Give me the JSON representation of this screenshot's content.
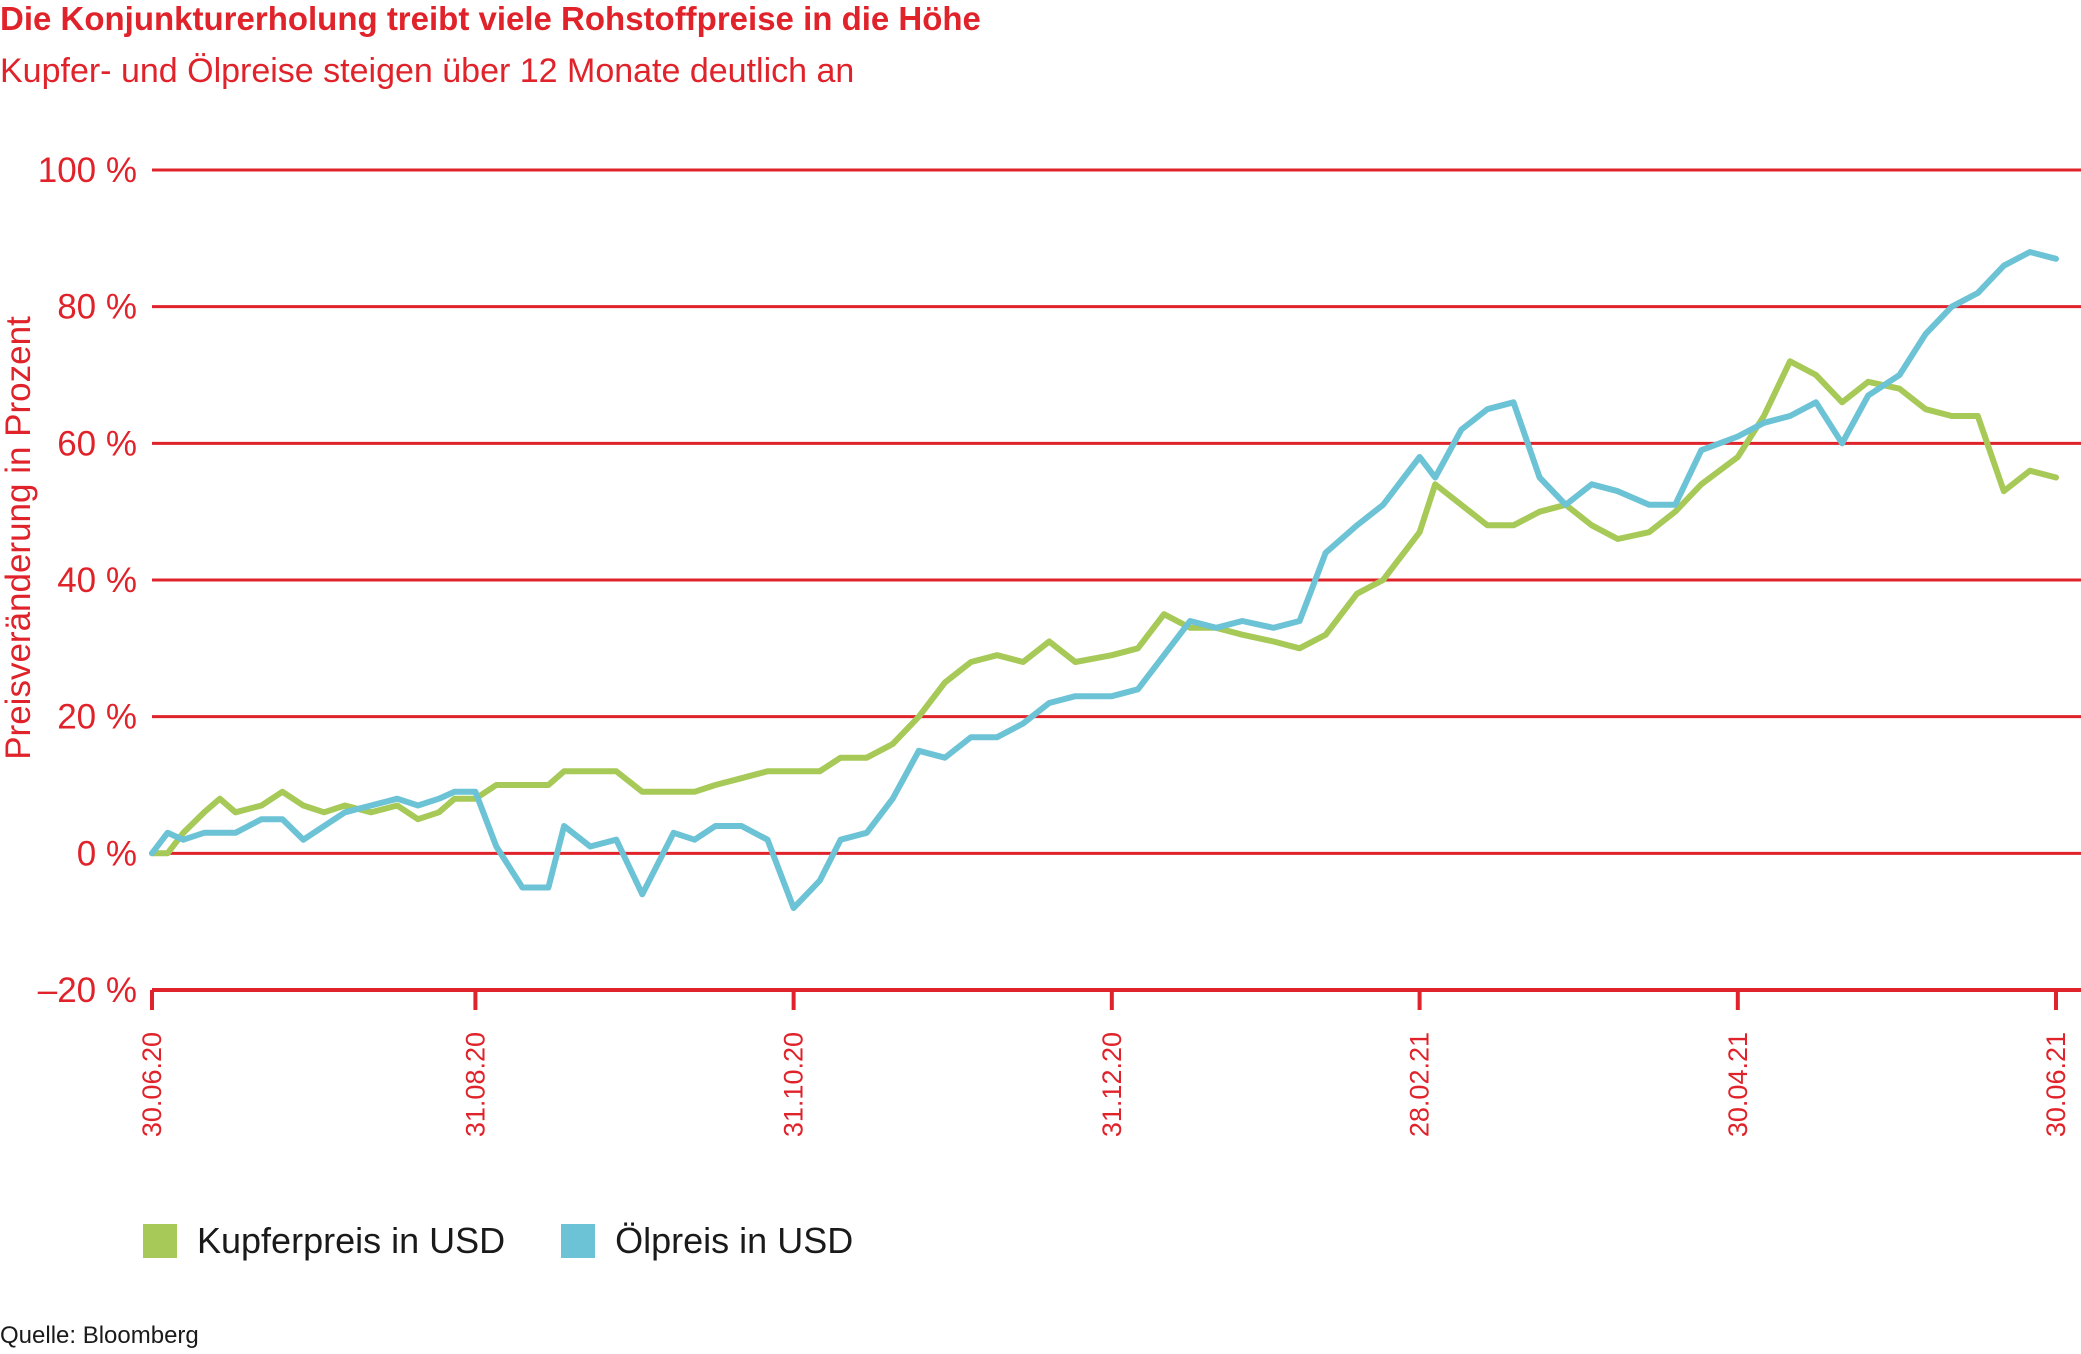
{
  "chart_data": {
    "type": "line",
    "title": "Die Konjunkturerholung treibt viele Rohstoffpreise in die Höhe",
    "subtitle": "Kupfer- und Ölpreise steigen über 12 Monate deutlich an",
    "ylabel": "Preisveränderung in Prozent",
    "xlabel": "",
    "ylim": [
      -20,
      100
    ],
    "y_ticks": [
      -20,
      0,
      20,
      40,
      60,
      80,
      100
    ],
    "y_tick_labels": [
      "–20 %",
      "0 %",
      "20 %",
      "40 %",
      "60 %",
      "80 %",
      "100 %"
    ],
    "x_ticks": [
      "30.06.20",
      "31.08.20",
      "31.10.20",
      "31.12.20",
      "28.02.21",
      "30.04.21",
      "30.06.21"
    ],
    "grid": true,
    "legend_position": "bottom-left",
    "x_range": [
      "30.06.20",
      "30.06.21"
    ],
    "series": [
      {
        "name": "Kupferpreis in USD",
        "color": "#a7c957",
        "points": [
          [
            "30.06.20",
            0
          ],
          [
            "03.07.20",
            0
          ],
          [
            "06.07.20",
            3
          ],
          [
            "10.07.20",
            6
          ],
          [
            "13.07.20",
            8
          ],
          [
            "16.07.20",
            6
          ],
          [
            "21.07.20",
            7
          ],
          [
            "25.07.20",
            9
          ],
          [
            "29.07.20",
            7
          ],
          [
            "02.08.20",
            6
          ],
          [
            "06.08.20",
            7
          ],
          [
            "11.08.20",
            6
          ],
          [
            "16.08.20",
            7
          ],
          [
            "20.08.20",
            5
          ],
          [
            "24.08.20",
            6
          ],
          [
            "27.08.20",
            8
          ],
          [
            "31.08.20",
            8
          ],
          [
            "04.09.20",
            10
          ],
          [
            "09.09.20",
            10
          ],
          [
            "14.09.20",
            10
          ],
          [
            "17.09.20",
            12
          ],
          [
            "22.09.20",
            12
          ],
          [
            "27.09.20",
            12
          ],
          [
            "02.10.20",
            9
          ],
          [
            "08.10.20",
            9
          ],
          [
            "12.10.20",
            9
          ],
          [
            "16.10.20",
            10
          ],
          [
            "21.10.20",
            11
          ],
          [
            "26.10.20",
            12
          ],
          [
            "31.10.20",
            12
          ],
          [
            "05.11.20",
            12
          ],
          [
            "09.11.20",
            14
          ],
          [
            "14.11.20",
            14
          ],
          [
            "19.11.20",
            16
          ],
          [
            "24.11.20",
            20
          ],
          [
            "29.11.20",
            25
          ],
          [
            "04.12.20",
            28
          ],
          [
            "09.12.20",
            29
          ],
          [
            "14.12.20",
            28
          ],
          [
            "19.12.20",
            31
          ],
          [
            "24.12.20",
            28
          ],
          [
            "31.12.20",
            29
          ],
          [
            "05.01.21",
            30
          ],
          [
            "10.01.21",
            35
          ],
          [
            "15.01.21",
            33
          ],
          [
            "20.01.21",
            33
          ],
          [
            "25.01.21",
            32
          ],
          [
            "31.01.21",
            31
          ],
          [
            "05.02.21",
            30
          ],
          [
            "10.02.21",
            32
          ],
          [
            "16.02.21",
            38
          ],
          [
            "21.02.21",
            40
          ],
          [
            "28.02.21",
            47
          ],
          [
            "03.03.21",
            54
          ],
          [
            "08.03.21",
            51
          ],
          [
            "13.03.21",
            48
          ],
          [
            "18.03.21",
            48
          ],
          [
            "23.03.21",
            50
          ],
          [
            "28.03.21",
            51
          ],
          [
            "02.04.21",
            48
          ],
          [
            "07.04.21",
            46
          ],
          [
            "13.04.21",
            47
          ],
          [
            "18.04.21",
            50
          ],
          [
            "23.04.21",
            54
          ],
          [
            "30.04.21",
            58
          ],
          [
            "05.05.21",
            64
          ],
          [
            "10.05.21",
            72
          ],
          [
            "15.05.21",
            70
          ],
          [
            "20.05.21",
            66
          ],
          [
            "25.05.21",
            69
          ],
          [
            "31.05.21",
            68
          ],
          [
            "05.06.21",
            65
          ],
          [
            "10.06.21",
            64
          ],
          [
            "15.06.21",
            64
          ],
          [
            "20.06.21",
            53
          ],
          [
            "25.06.21",
            56
          ],
          [
            "30.06.21",
            55
          ]
        ]
      },
      {
        "name": "Ölpreis in USD",
        "color": "#6cc3d5",
        "points": [
          [
            "30.06.20",
            0
          ],
          [
            "03.07.20",
            3
          ],
          [
            "06.07.20",
            2
          ],
          [
            "10.07.20",
            3
          ],
          [
            "13.07.20",
            3
          ],
          [
            "16.07.20",
            3
          ],
          [
            "21.07.20",
            5
          ],
          [
            "25.07.20",
            5
          ],
          [
            "29.07.20",
            2
          ],
          [
            "02.08.20",
            4
          ],
          [
            "06.08.20",
            6
          ],
          [
            "11.08.20",
            7
          ],
          [
            "16.08.20",
            8
          ],
          [
            "20.08.20",
            7
          ],
          [
            "24.08.20",
            8
          ],
          [
            "27.08.20",
            9
          ],
          [
            "31.08.20",
            9
          ],
          [
            "04.09.20",
            1
          ],
          [
            "09.09.20",
            -5
          ],
          [
            "14.09.20",
            -5
          ],
          [
            "17.09.20",
            4
          ],
          [
            "22.09.20",
            1
          ],
          [
            "27.09.20",
            2
          ],
          [
            "02.10.20",
            -6
          ],
          [
            "08.10.20",
            3
          ],
          [
            "12.10.20",
            2
          ],
          [
            "16.10.20",
            4
          ],
          [
            "21.10.20",
            4
          ],
          [
            "26.10.20",
            2
          ],
          [
            "31.10.20",
            -8
          ],
          [
            "05.11.20",
            -4
          ],
          [
            "09.11.20",
            2
          ],
          [
            "14.11.20",
            3
          ],
          [
            "19.11.20",
            8
          ],
          [
            "24.11.20",
            15
          ],
          [
            "29.11.20",
            14
          ],
          [
            "04.12.20",
            17
          ],
          [
            "09.12.20",
            17
          ],
          [
            "14.12.20",
            19
          ],
          [
            "19.12.20",
            22
          ],
          [
            "24.12.20",
            23
          ],
          [
            "31.12.20",
            23
          ],
          [
            "05.01.21",
            24
          ],
          [
            "10.01.21",
            29
          ],
          [
            "15.01.21",
            34
          ],
          [
            "20.01.21",
            33
          ],
          [
            "25.01.21",
            34
          ],
          [
            "31.01.21",
            33
          ],
          [
            "05.02.21",
            34
          ],
          [
            "10.02.21",
            44
          ],
          [
            "16.02.21",
            48
          ],
          [
            "21.02.21",
            51
          ],
          [
            "28.02.21",
            58
          ],
          [
            "03.03.21",
            55
          ],
          [
            "08.03.21",
            62
          ],
          [
            "13.03.21",
            65
          ],
          [
            "18.03.21",
            66
          ],
          [
            "23.03.21",
            55
          ],
          [
            "28.03.21",
            51
          ],
          [
            "02.04.21",
            54
          ],
          [
            "07.04.21",
            53
          ],
          [
            "13.04.21",
            51
          ],
          [
            "18.04.21",
            51
          ],
          [
            "23.04.21",
            59
          ],
          [
            "30.04.21",
            61
          ],
          [
            "05.05.21",
            63
          ],
          [
            "10.05.21",
            64
          ],
          [
            "15.05.21",
            66
          ],
          [
            "20.05.21",
            60
          ],
          [
            "25.05.21",
            67
          ],
          [
            "31.05.21",
            70
          ],
          [
            "05.06.21",
            76
          ],
          [
            "10.06.21",
            80
          ],
          [
            "15.06.21",
            82
          ],
          [
            "20.06.21",
            86
          ],
          [
            "25.06.21",
            88
          ],
          [
            "30.06.21",
            87
          ]
        ]
      }
    ]
  },
  "source": "Quelle: Bloomberg"
}
